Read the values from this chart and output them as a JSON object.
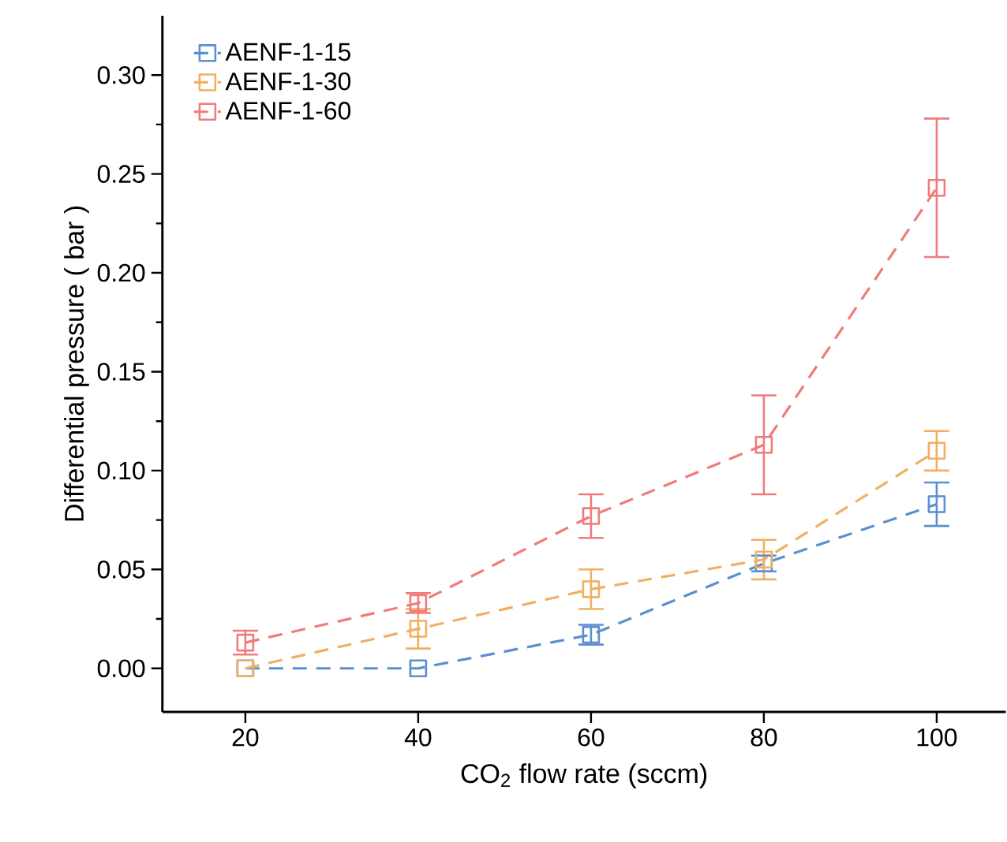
{
  "chart_data": {
    "type": "line",
    "xlabel": "CO$_{2}$ flow rate (sccm)",
    "ylabel": "Differential pressure ( bar )",
    "x": [
      20,
      40,
      60,
      80,
      100
    ],
    "series": [
      {
        "name": "AENF-1-15",
        "color": "#5b8fd0",
        "values": [
          0,
          0,
          0.017,
          0.053,
          0.083
        ],
        "errors": [
          null,
          null,
          0.005,
          0.004,
          0.011
        ]
      },
      {
        "name": "AENF-1-30",
        "color": "#f0b062",
        "values": [
          0,
          0.02,
          0.04,
          0.055,
          0.11
        ],
        "errors": [
          null,
          0.01,
          0.01,
          0.01,
          0.01
        ]
      },
      {
        "name": "AENF-1-60",
        "color": "#f07b7b",
        "values": [
          0.013,
          0.033,
          0.077,
          0.113,
          0.243
        ],
        "errors": [
          0.006,
          0.005,
          0.011,
          0.025,
          0.035
        ]
      }
    ],
    "xlim": [
      10.4,
      108
    ],
    "ylim": [
      -0.022,
      0.33
    ],
    "xticks": [
      20,
      40,
      60,
      80,
      100
    ],
    "yticks": [
      {
        "value": 0,
        "label": "0.00"
      },
      {
        "value": 0.05,
        "label": "0.05"
      },
      {
        "value": 0.1,
        "label": "0.10"
      },
      {
        "value": 0.15,
        "label": "0.15"
      },
      {
        "value": 0.2,
        "label": "0.20"
      },
      {
        "value": 0.25,
        "label": "0.25"
      },
      {
        "value": 0.3,
        "label": "0.30"
      }
    ],
    "grid": false,
    "legend": "top left",
    "marker": "square",
    "line_style": "dashed"
  }
}
